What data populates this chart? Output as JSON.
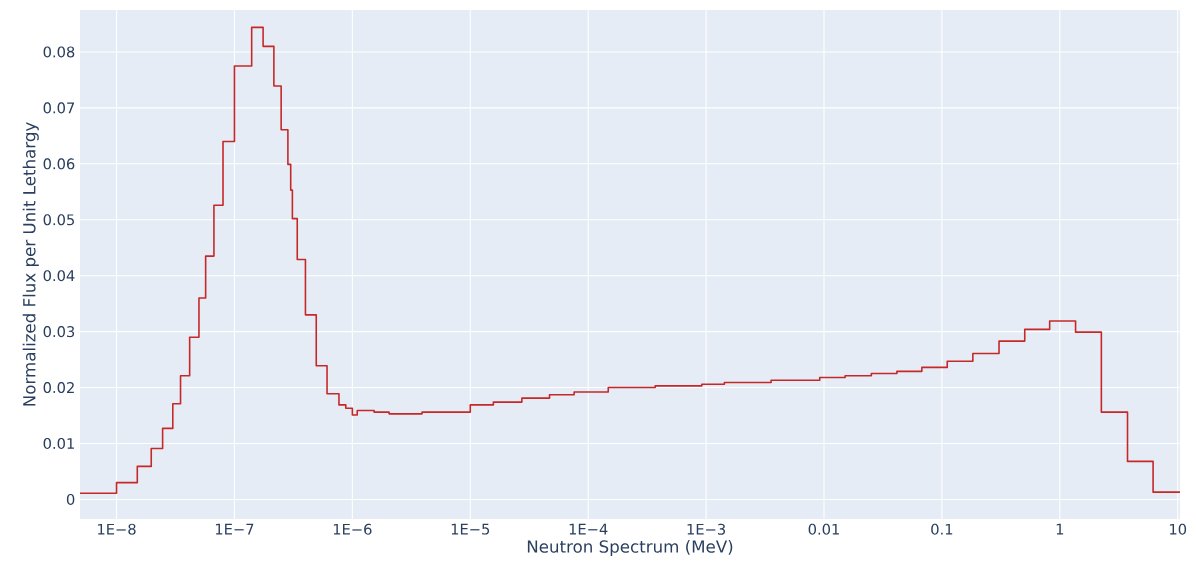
{
  "chart_data": {
    "type": "step",
    "xlabel": "Neutron Spectrum (MeV)",
    "ylabel": "Normalized Flux per Unit Lethargy",
    "log": "x",
    "grid": true,
    "line_style": "solid",
    "marker": "none",
    "xlim": [
      4.9e-09,
      10.45
    ],
    "ylim": [
      -0.0035,
      0.0875
    ],
    "xticks": [
      {
        "value": 1e-08,
        "label": "1E−8"
      },
      {
        "value": 1e-07,
        "label": "1E−7"
      },
      {
        "value": 1e-06,
        "label": "1E−6"
      },
      {
        "value": 1e-05,
        "label": "1E−5"
      },
      {
        "value": 0.0001,
        "label": "1E−4"
      },
      {
        "value": 0.001,
        "label": "1E−3"
      },
      0.01,
      0.1,
      1,
      10
    ],
    "yticks": [
      0,
      0.01,
      0.02,
      0.03,
      0.04,
      0.05,
      0.06,
      0.07,
      0.08
    ],
    "series": [
      {
        "color": "#c62828",
        "x": [
          4.9e-09,
          1e-08,
          1.5e-08,
          1.97e-08,
          2.46e-08,
          3e-08,
          3.49e-08,
          4.17e-08,
          5e-08,
          5.7e-08,
          6.7e-08,
          8e-08,
          1e-07,
          1.4e-07,
          1.75e-07,
          2.16e-07,
          2.49e-07,
          2.84e-07,
          3e-07,
          3.1e-07,
          3.41e-07,
          4e-07,
          4.94e-07,
          6.1e-07,
          7.7e-07,
          8.8e-07,
          1e-06,
          1.1e-06,
          1.53e-06,
          2.05e-06,
          3.9e-06,
          1e-05,
          1.57e-05,
          2.74e-05,
          4.7e-05,
          7.6e-05,
          0.000148,
          0.00037,
          0.00092,
          0.00143,
          0.00356,
          0.0092,
          0.0151,
          0.0252,
          0.0415,
          0.0676,
          0.111,
          0.183,
          0.305,
          0.504,
          0.82,
          1.36,
          2.25,
          3.75,
          6.18,
          10.45
        ],
        "values": [
          0.0011,
          0.003,
          0.0059,
          0.0091,
          0.0127,
          0.0171,
          0.0221,
          0.029,
          0.036,
          0.0435,
          0.0526,
          0.064,
          0.0775,
          0.0844,
          0.081,
          0.0739,
          0.0661,
          0.0599,
          0.0553,
          0.0502,
          0.0429,
          0.033,
          0.0239,
          0.0189,
          0.0169,
          0.0163,
          0.0151,
          0.0159,
          0.0156,
          0.0153,
          0.0156,
          0.0169,
          0.0174,
          0.0181,
          0.0187,
          0.0192,
          0.02,
          0.0203,
          0.0206,
          0.0209,
          0.0213,
          0.0218,
          0.0221,
          0.0225,
          0.0229,
          0.0236,
          0.0247,
          0.0261,
          0.0283,
          0.0304,
          0.0319,
          0.0299,
          0.0156,
          0.0068,
          0.0013,
          0.0013
        ]
      }
    ]
  }
}
